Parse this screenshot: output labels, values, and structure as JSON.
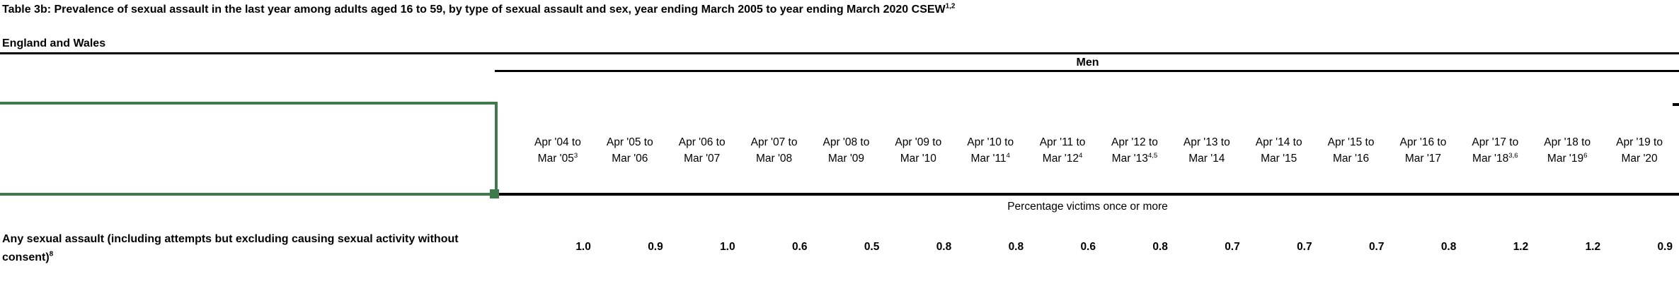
{
  "title": {
    "text": "Table 3b: Prevalence of sexual assault in the last year among adults aged 16 to 59, by type of sexual assault and sex, year ending March 2005 to year ending March 2020 CSEW",
    "sup": "1,2"
  },
  "region_label": "England and Wales",
  "group_header": "Men",
  "unit_label": "Percentage victims once or more",
  "selection": {
    "color": "#3F7A4D"
  },
  "table": {
    "columns": [
      {
        "line1": "Apr '04 to",
        "line2": "Mar '05",
        "sup": "3"
      },
      {
        "line1": "Apr '05 to",
        "line2": "Mar '06",
        "sup": ""
      },
      {
        "line1": "Apr '06 to",
        "line2": "Mar '07",
        "sup": ""
      },
      {
        "line1": "Apr '07 to",
        "line2": "Mar '08",
        "sup": ""
      },
      {
        "line1": "Apr '08 to",
        "line2": "Mar '09",
        "sup": ""
      },
      {
        "line1": "Apr '09 to",
        "line2": "Mar '10",
        "sup": ""
      },
      {
        "line1": "Apr '10 to",
        "line2": "Mar '11",
        "sup": "4"
      },
      {
        "line1": "Apr '11 to",
        "line2": "Mar '12",
        "sup": "4"
      },
      {
        "line1": "Apr '12 to",
        "line2": "Mar '13",
        "sup": "4,5"
      },
      {
        "line1": "Apr '13 to",
        "line2": "Mar '14",
        "sup": ""
      },
      {
        "line1": "Apr '14 to",
        "line2": "Mar '15",
        "sup": ""
      },
      {
        "line1": "Apr '15 to",
        "line2": "Mar '16",
        "sup": ""
      },
      {
        "line1": "Apr '16 to",
        "line2": "Mar '17",
        "sup": ""
      },
      {
        "line1": "Apr '17 to",
        "line2": "Mar '18",
        "sup": "3,6"
      },
      {
        "line1": "Apr '18 to",
        "line2": "Mar '19",
        "sup": "6"
      },
      {
        "line1": "Apr '19 to",
        "line2": "Mar '20",
        "sup": ""
      }
    ],
    "row": {
      "label": "Any sexual assault (including attempts but excluding causing sexual activity without consent)",
      "label_sup": "8",
      "values": [
        "1.0",
        "0.9",
        "1.0",
        "0.6",
        "0.5",
        "0.8",
        "0.8",
        "0.6",
        "0.8",
        "0.7",
        "0.7",
        "0.7",
        "0.8",
        "1.2",
        "1.2",
        "0.9"
      ]
    }
  }
}
